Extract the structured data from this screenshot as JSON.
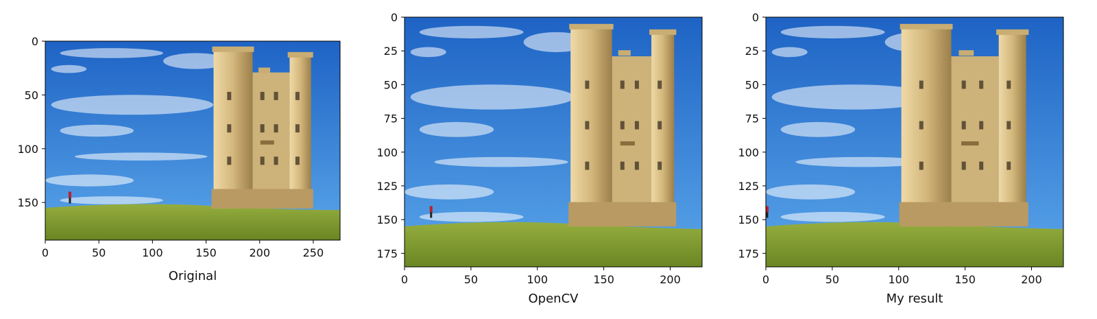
{
  "chart_data": [
    {
      "type": "image",
      "xlabel": "Original",
      "xlim": [
        0,
        275
      ],
      "ylim": [
        185,
        0
      ],
      "xticks": [
        0,
        50,
        100,
        150,
        200,
        250
      ],
      "yticks": [
        0,
        50,
        100,
        150
      ],
      "scene": {
        "tower_left": 157,
        "tower_right": 248,
        "tower_top": 5,
        "grass_y": 153,
        "grass_left_y": 155,
        "grass_right_y": 157,
        "person_x": 23,
        "person_y": 140
      }
    },
    {
      "type": "image",
      "xlabel": "OpenCV",
      "xlim": [
        0,
        224
      ],
      "ylim": [
        185,
        0
      ],
      "xticks": [
        0,
        50,
        100,
        150,
        200
      ],
      "yticks": [
        0,
        25,
        50,
        75,
        100,
        125,
        150,
        175
      ],
      "scene": {
        "tower_left": 125,
        "tower_right": 203,
        "tower_top": 5,
        "grass_y": 153,
        "grass_left_y": 155,
        "grass_right_y": 157,
        "person_x": 20,
        "person_y": 140
      }
    },
    {
      "type": "image",
      "xlabel": "My result",
      "xlim": [
        0,
        224
      ],
      "ylim": [
        185,
        0
      ],
      "xticks": [
        0,
        50,
        100,
        150,
        200
      ],
      "yticks": [
        0,
        25,
        50,
        75,
        100,
        125,
        150,
        175
      ],
      "scene": {
        "tower_left": 102,
        "tower_right": 196,
        "tower_top": 5,
        "grass_y": 153,
        "grass_left_y": 155,
        "grass_right_y": 157,
        "person_x": 1,
        "person_y": 140
      }
    }
  ],
  "colors": {
    "sky_top": "#1e63c4",
    "sky_bottom": "#5aa6ea",
    "grass_top": "#8ea83a",
    "grass_bottom": "#6d8a25",
    "stone_light": "#d8c08a",
    "stone_dark": "#9c7f4a",
    "cloud": "#ffffff"
  }
}
